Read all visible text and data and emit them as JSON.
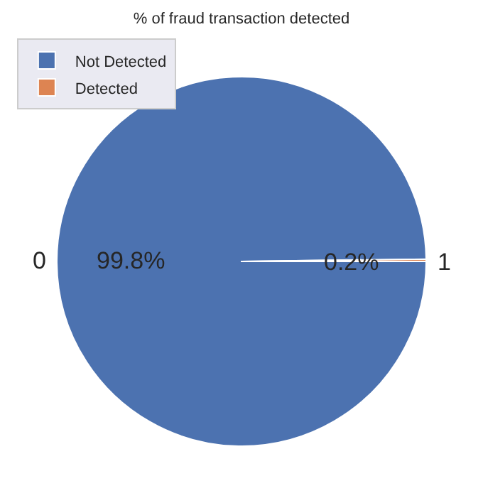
{
  "chart_data": {
    "type": "pie",
    "title": "% of fraud transaction detected",
    "categories": [
      "Not Detected",
      "Detected"
    ],
    "values": [
      99.8,
      0.2
    ],
    "colors": [
      "#4c72b0",
      "#dd8452"
    ],
    "value_labels": [
      "99.8%",
      "0.2%"
    ],
    "annotations": [
      "0",
      "1"
    ],
    "legend": "top left"
  }
}
